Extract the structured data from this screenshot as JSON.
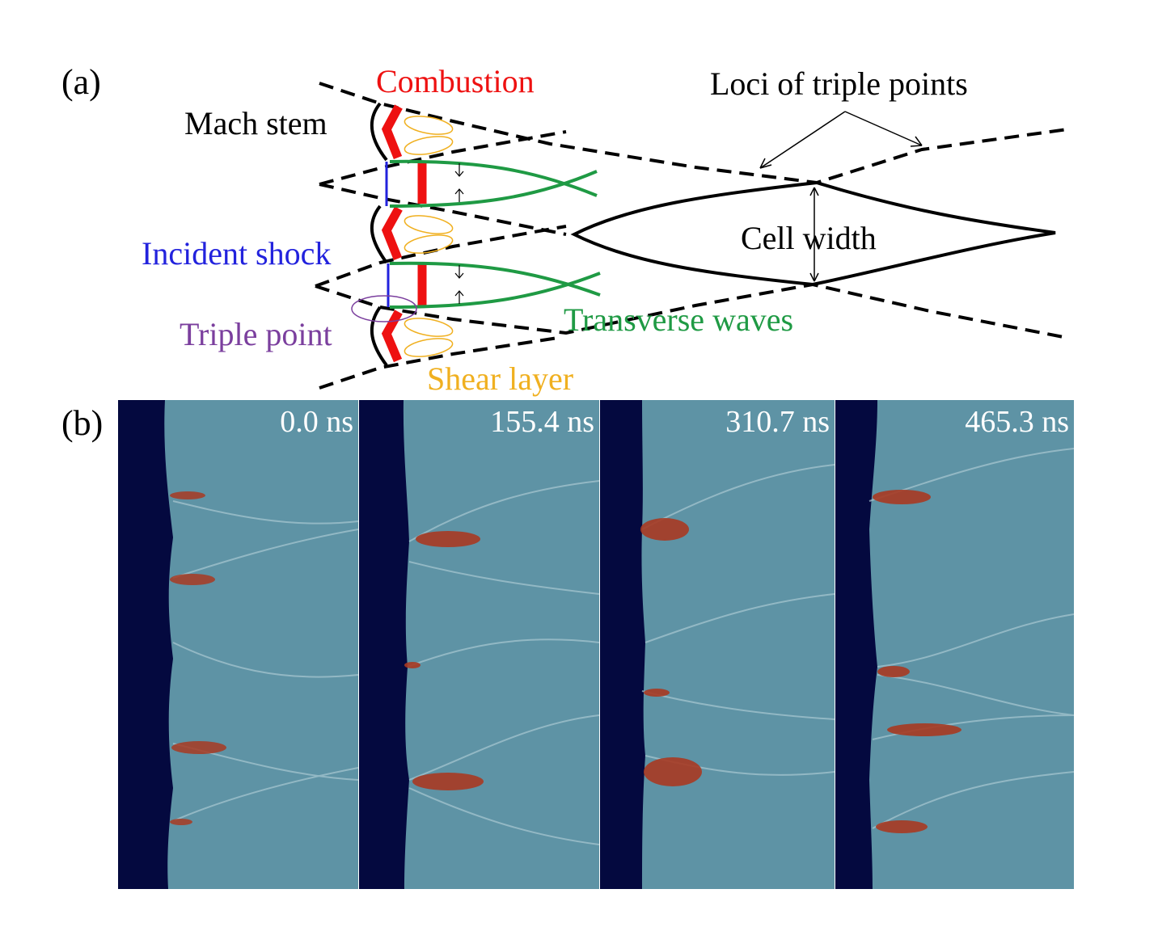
{
  "panel_a": {
    "label": "(a)",
    "mach_stem": "Mach stem",
    "combustion": "Combustion",
    "loci": "Loci of triple points",
    "incident_shock": "Incident shock",
    "cell_width": "Cell width",
    "triple_point": "Triple point",
    "transverse_waves": "Transverse waves",
    "shear_layer": "Shear layer"
  },
  "panel_b": {
    "label": "(b)",
    "frames": [
      {
        "time": "0.0 ns"
      },
      {
        "time": "155.4 ns"
      },
      {
        "time": "310.7 ns"
      },
      {
        "time": "465.3 ns"
      }
    ]
  },
  "colors": {
    "combustion": "#ee1111",
    "incident_shock": "#2222dd",
    "triple_point": "#7b3f9e",
    "transverse_waves": "#1f9a44",
    "shear_layer": "#f0b020",
    "burnt_region": "#04093f",
    "flow_field": "#5e93a5"
  }
}
